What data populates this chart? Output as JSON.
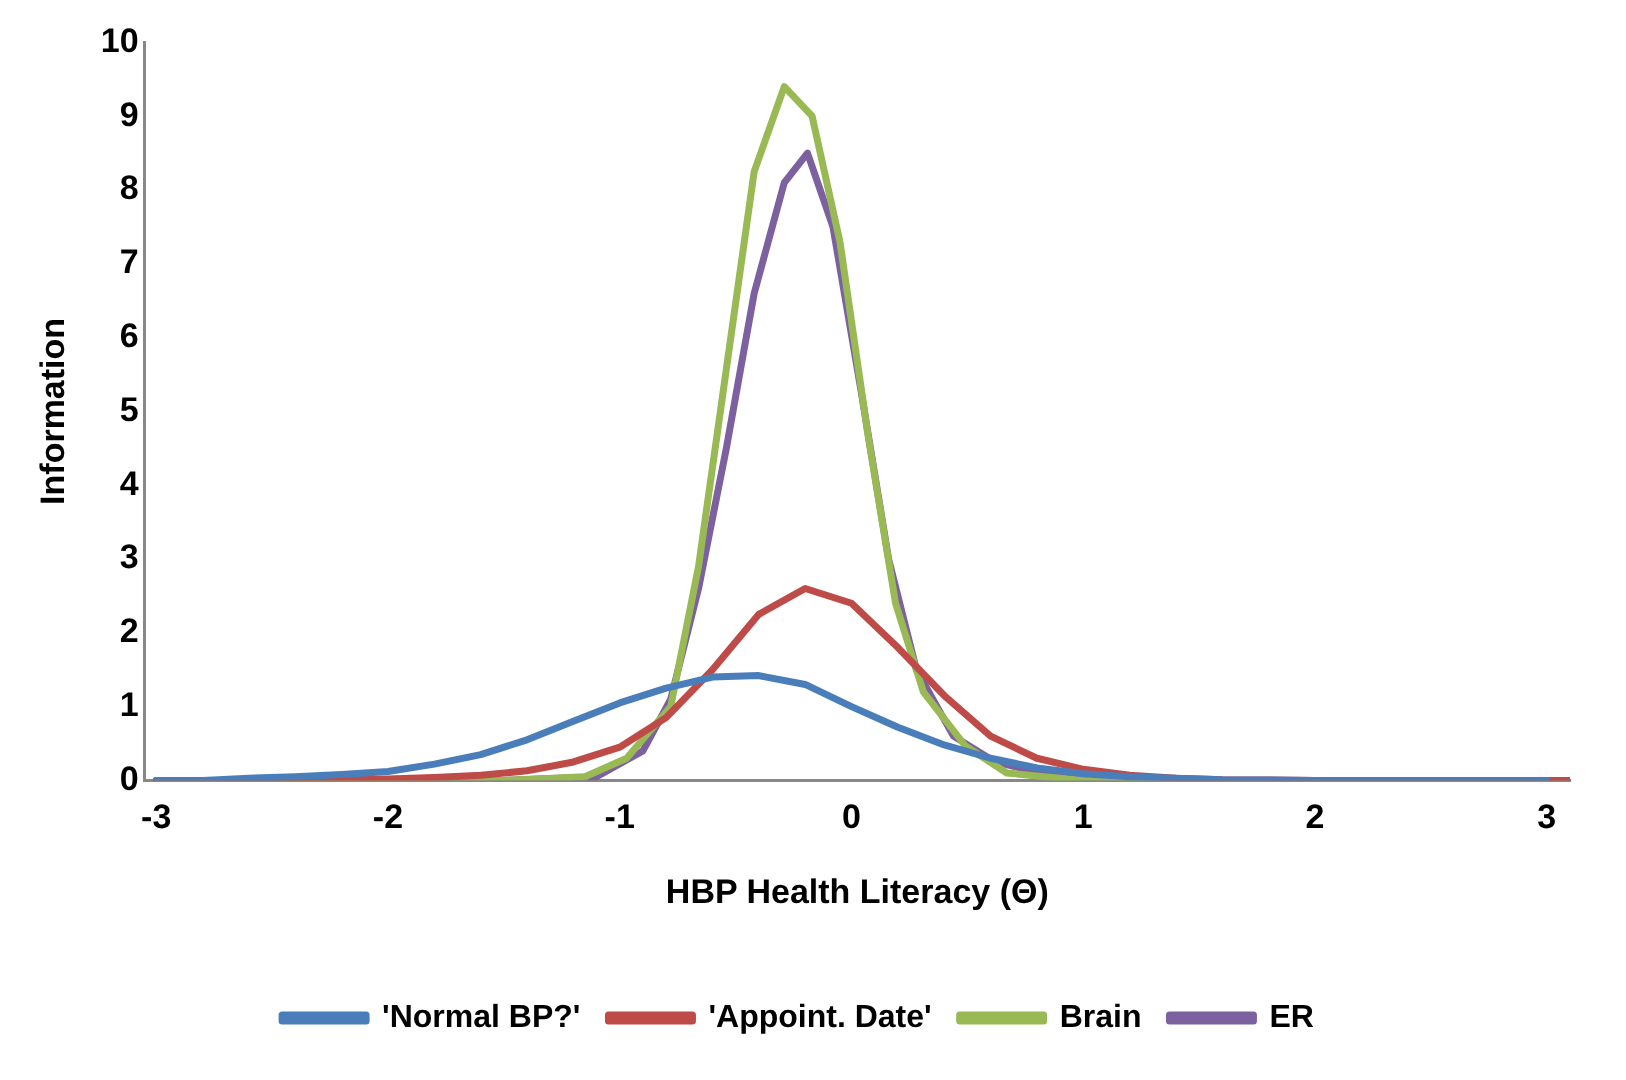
{
  "chart_data": {
    "type": "line",
    "xlabel": "HBP Health Literacy (Θ)",
    "ylabel": "Information",
    "xlim": [
      -3.05,
      3.1
    ],
    "xticks": [
      -3,
      -2,
      -1,
      0,
      1,
      2,
      3
    ],
    "ylim": [
      0,
      10
    ],
    "yticks": [
      0,
      1,
      2,
      3,
      4,
      5,
      6,
      7,
      8,
      9,
      10
    ],
    "grid": false,
    "legend": "bottom",
    "marker": "none",
    "line_style": "solid",
    "series": [
      {
        "name": "'Normal BP?'",
        "color": "#4a7ebb",
        "x": [
          -3,
          -2.8,
          -2.6,
          -2.4,
          -2.2,
          -2,
          -1.8,
          -1.6,
          -1.4,
          -1.2,
          -1,
          -0.8,
          -0.6,
          -0.4,
          -0.2,
          0,
          0.2,
          0.4,
          0.6,
          0.8,
          1,
          1.2,
          1.4,
          1.6,
          2,
          2.5,
          3
        ],
        "values": [
          0,
          0,
          0.03,
          0.05,
          0.08,
          0.12,
          0.22,
          0.35,
          0.55,
          0.8,
          1.05,
          1.25,
          1.4,
          1.42,
          1.3,
          1.0,
          0.72,
          0.48,
          0.3,
          0.17,
          0.09,
          0.05,
          0.03,
          0.01,
          0,
          0,
          0
        ]
      },
      {
        "name": "'Appoint. Date'",
        "color": "#be4b48",
        "x": [
          -3,
          -2.5,
          -2,
          -1.8,
          -1.6,
          -1.4,
          -1.2,
          -1,
          -0.8,
          -0.6,
          -0.4,
          -0.2,
          0,
          0.2,
          0.4,
          0.6,
          0.8,
          1,
          1.2,
          1.4,
          1.6,
          2,
          2.5,
          3.1
        ],
        "values": [
          0,
          0,
          0.02,
          0.04,
          0.07,
          0.13,
          0.25,
          0.45,
          0.85,
          1.5,
          2.25,
          2.6,
          2.4,
          1.8,
          1.15,
          0.6,
          0.3,
          0.15,
          0.07,
          0.03,
          0.01,
          0,
          0,
          0
        ]
      },
      {
        "name": "Brain",
        "color": "#98b954",
        "x": [
          -3,
          -2,
          -1.5,
          -1.15,
          -0.97,
          -0.78,
          -0.66,
          -0.42,
          -0.29,
          -0.17,
          -0.05,
          0.07,
          0.19,
          0.31,
          0.49,
          0.67,
          1,
          2,
          3
        ],
        "values": [
          0,
          0,
          0,
          0.05,
          0.3,
          1.0,
          2.9,
          8.25,
          9.4,
          9.0,
          7.3,
          4.7,
          2.4,
          1.2,
          0.47,
          0.1,
          0,
          0,
          0
        ]
      },
      {
        "name": "ER",
        "color": "#7d60a0",
        "x": [
          -3,
          -2,
          -1.5,
          -1.1,
          -0.9,
          -0.78,
          -0.66,
          -0.54,
          -0.42,
          -0.29,
          -0.19,
          -0.08,
          0.04,
          0.16,
          0.28,
          0.44,
          0.62,
          0.86,
          1.2,
          2,
          3
        ],
        "values": [
          0,
          0,
          0,
          0.05,
          0.4,
          1.1,
          2.6,
          4.5,
          6.6,
          8.1,
          8.5,
          7.5,
          5.3,
          3.0,
          1.5,
          0.6,
          0.25,
          0.07,
          0,
          0,
          0
        ]
      }
    ]
  }
}
